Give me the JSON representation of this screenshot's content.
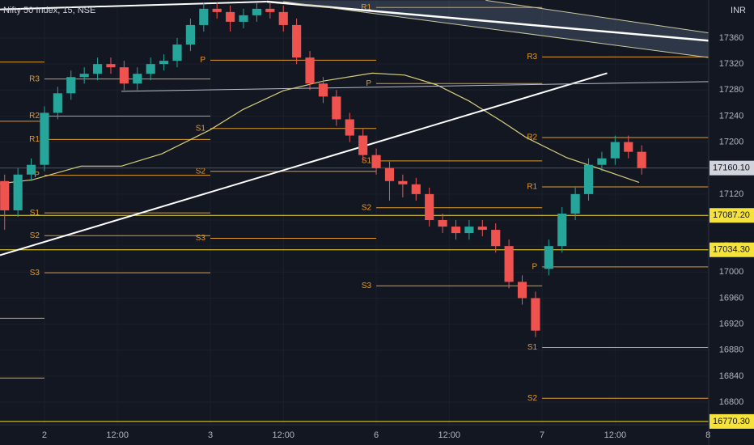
{
  "chart_data": {
    "type": "candlestick",
    "title": "Nifty 50 Index, 15, NSE",
    "currency": "INR",
    "up_color": "#26a69a",
    "down_color": "#ef5350",
    "xlim": [
      -6.7,
      100.1
    ],
    "ylim": [
      16765.2,
      17418.5
    ],
    "xticks": [
      {
        "value": 0,
        "label": "2"
      },
      {
        "value": 11,
        "label": "12:00"
      },
      {
        "value": 25,
        "label": "3"
      },
      {
        "value": 36,
        "label": "12:00"
      },
      {
        "value": 50,
        "label": "6"
      },
      {
        "value": 61,
        "label": "12:00"
      },
      {
        "value": 75,
        "label": "7"
      },
      {
        "value": 86,
        "label": "12:00"
      },
      {
        "value": 100,
        "label": "8"
      }
    ],
    "yticks": [
      16800,
      16840,
      16880,
      16920,
      16960,
      17000,
      17040,
      17080,
      17120,
      17160,
      17200,
      17240,
      17280,
      17320,
      17360
    ],
    "x": [
      -6,
      -4,
      -2,
      0,
      2,
      4,
      6,
      8,
      10,
      12,
      14,
      16,
      18,
      20,
      22,
      24,
      26,
      28,
      30,
      32,
      34,
      36,
      38,
      40,
      42,
      44,
      46,
      48,
      50,
      52,
      54,
      56,
      58,
      60,
      62,
      64,
      66,
      68,
      70,
      72,
      74,
      76,
      78,
      80,
      82,
      84,
      86,
      88,
      90
    ],
    "open": [
      17140,
      17095,
      17150,
      17165,
      17245,
      17275,
      17300,
      17305,
      17320,
      17315,
      17290,
      17305,
      17320,
      17325,
      17350,
      17380,
      17405,
      17400,
      17385,
      17395,
      17405,
      17400,
      17380,
      17330,
      17290,
      17270,
      17235,
      17210,
      17180,
      17160,
      17140,
      17135,
      17120,
      17080,
      17070,
      17060,
      17070,
      17065,
      17040,
      16985,
      16960,
      17005,
      17040,
      17090,
      17120,
      17165,
      17175,
      17200,
      17185
    ],
    "high": [
      17150,
      17160,
      17175,
      17255,
      17285,
      17310,
      17315,
      17330,
      17330,
      17325,
      17315,
      17330,
      17335,
      17360,
      17390,
      17415,
      17415,
      17410,
      17405,
      17415,
      17415,
      17410,
      17390,
      17340,
      17300,
      17280,
      17245,
      17220,
      17190,
      17170,
      17150,
      17145,
      17130,
      17090,
      17080,
      17080,
      17080,
      17075,
      17050,
      16995,
      16970,
      17050,
      17100,
      17130,
      17175,
      17185,
      17210,
      17210,
      17195
    ],
    "low": [
      17065,
      17085,
      17140,
      17155,
      17235,
      17265,
      17290,
      17295,
      17305,
      17280,
      17280,
      17295,
      17310,
      17315,
      17340,
      17370,
      17390,
      17370,
      17375,
      17385,
      17390,
      17370,
      17320,
      17280,
      17260,
      17225,
      17200,
      17170,
      17150,
      17110,
      17115,
      17110,
      17070,
      17060,
      17050,
      17050,
      17055,
      17030,
      16975,
      16950,
      16900,
      16995,
      17030,
      17080,
      17110,
      17155,
      17165,
      17175,
      17150
    ],
    "close": [
      17095,
      17150,
      17165,
      17245,
      17275,
      17300,
      17305,
      17320,
      17315,
      17290,
      17305,
      17320,
      17325,
      17350,
      17380,
      17405,
      17400,
      17385,
      17395,
      17405,
      17400,
      17380,
      17330,
      17290,
      17270,
      17235,
      17210,
      17180,
      17160,
      17140,
      17135,
      17120,
      17080,
      17070,
      17060,
      17070,
      17065,
      17040,
      16985,
      16960,
      16910,
      17040,
      17090,
      17120,
      17165,
      17175,
      17200,
      17185,
      17160
    ],
    "pivot_color": "#e39b2e",
    "pivots": [
      {
        "x": [
          -25,
          0
        ],
        "levels": [
          {
            "value": 17323
          },
          {
            "value": 17232
          },
          {
            "value": 16929
          },
          {
            "value": 16837
          }
        ]
      },
      {
        "x": [
          0,
          25
        ],
        "levels": [
          {
            "label": "R3",
            "value": 17297
          },
          {
            "label": "R2",
            "value": 17240
          },
          {
            "label": "R1",
            "value": 17204
          },
          {
            "label": "P",
            "value": 17149
          },
          {
            "label": "S1",
            "value": 17091
          },
          {
            "label": "S2",
            "value": 17056
          },
          {
            "label": "S3",
            "value": 16999
          }
        ]
      },
      {
        "x": [
          25,
          50
        ],
        "levels": [
          {
            "label": "P",
            "value": 17326
          },
          {
            "label": "S1",
            "value": 17221
          },
          {
            "label": "S2",
            "value": 17155
          },
          {
            "label": "S3",
            "value": 17052
          }
        ]
      },
      {
        "x": [
          50,
          75
        ],
        "levels": [
          {
            "label": "R1",
            "value": 17407
          },
          {
            "label": "P",
            "value": 17290
          },
          {
            "label": "S1",
            "value": 17171
          },
          {
            "label": "S2",
            "value": 17099
          },
          {
            "label": "S3",
            "value": 16979
          }
        ]
      },
      {
        "x": [
          75,
          100
        ],
        "levels": [
          {
            "label": "R3",
            "value": 17331
          },
          {
            "label": "R2",
            "value": 17207
          },
          {
            "label": "R1",
            "value": 17131
          },
          {
            "label": "P",
            "value": 17008
          },
          {
            "label": "S1",
            "value": 16884
          },
          {
            "label": "S2",
            "value": 16806
          }
        ]
      }
    ],
    "channel": {
      "color": "rgba(120,140,170,0.28)",
      "x": [
        34.6,
        66.5,
        100.1,
        100.1
      ],
      "values": [
        17418,
        17418,
        17368,
        17330
      ]
    },
    "trend_lines": [
      {
        "color": "#ffffff",
        "width": 2,
        "x": [
          -6.7,
          84.8
        ],
        "values": [
          17026,
          17306
        ]
      },
      {
        "color": "#ffffff",
        "width": 2,
        "x": [
          -6.7,
          33.5
        ],
        "values": [
          17404,
          17416
        ]
      },
      {
        "color": "#ffffff",
        "width": 2.5,
        "x": [
          33.5,
          100.1
        ],
        "values": [
          17416,
          17356
        ]
      },
      {
        "color": "#c9c9a0",
        "width": 1,
        "x": [
          36,
          100.1
        ],
        "values": [
          17416,
          17330
        ]
      },
      {
        "color": "#c9c9a0",
        "width": 1,
        "x": [
          66.5,
          100.1
        ],
        "values": [
          17418,
          17368
        ]
      },
      {
        "color": "#b8bcc8",
        "width": 1,
        "x": [
          11.6,
          100.1
        ],
        "values": [
          17278,
          17293
        ]
      }
    ],
    "ma": {
      "color": "#d8cf7a",
      "x": [
        -6.7,
        -1.8,
        5.5,
        11.6,
        17.7,
        25,
        29.9,
        36,
        42.1,
        49.4,
        54.3,
        59.1,
        64,
        68.9,
        72.6,
        78.7,
        84.8,
        89.6
      ],
      "values": [
        17136,
        17142,
        17163,
        17163,
        17182,
        17219,
        17250,
        17279,
        17294,
        17306,
        17303,
        17288,
        17263,
        17232,
        17207,
        17176,
        17155,
        17138
      ]
    },
    "price_labels": [
      {
        "value": 17160.1,
        "label": "17160.10",
        "color": "#d1d4dc",
        "line": "#4a4f5c"
      },
      {
        "value": 17087.2,
        "label": "17087.20",
        "color": "#f5e23b",
        "line": "#f5e23b"
      },
      {
        "value": 17034.3,
        "label": "17034.30",
        "color": "#f5e23b",
        "line": "#f5e23b"
      },
      {
        "value": 16770.3,
        "label": "16770.30",
        "color": "#f5e23b",
        "line": "#f5e23b"
      }
    ]
  }
}
